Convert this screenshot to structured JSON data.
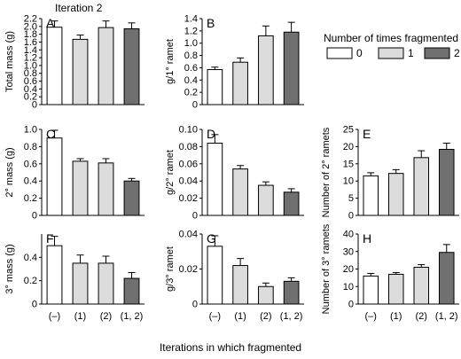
{
  "page": {
    "title": "Iteration 2",
    "shared_xlabel": "Iterations in which fragmented"
  },
  "legend": {
    "title": "Number of times fragmented",
    "items": [
      {
        "label": "0",
        "color": "#ffffff"
      },
      {
        "label": "1",
        "color": "#dcdcdc"
      },
      {
        "label": "2",
        "color": "#707070"
      }
    ]
  },
  "chart_data": [
    {
      "id": "A",
      "type": "bar",
      "ylabel": "Total mass (g)",
      "ylim": [
        0,
        2.2
      ],
      "ticks": [
        0,
        0.2,
        0.4,
        0.6,
        0.8,
        1.0,
        1.2,
        1.4,
        1.6,
        1.8,
        2.0,
        2.2
      ],
      "tick_labels": [
        "0",
        "0.2",
        "0.4",
        "0.6",
        "0.8",
        "1.0",
        "1.2",
        "1.4",
        "1.6",
        "1.8",
        "2.0",
        "2.2"
      ],
      "categories": [
        "(–)",
        "(1)",
        "(2)",
        "(1, 2)"
      ],
      "show_xticklabels": false,
      "values": [
        1.98,
        1.67,
        1.97,
        1.94
      ],
      "errors": [
        0.16,
        0.11,
        0.17,
        0.15
      ],
      "colors": [
        "#ffffff",
        "#dcdcdc",
        "#dcdcdc",
        "#707070"
      ]
    },
    {
      "id": "B",
      "type": "bar",
      "ylabel": "g/1° ramet",
      "ylim": [
        0,
        1.4
      ],
      "ticks": [
        0,
        0.2,
        0.4,
        0.6,
        0.8,
        1.0,
        1.2,
        1.4
      ],
      "tick_labels": [
        "0",
        "0.2",
        "0.4",
        "0.6",
        "0.8",
        "1.0",
        "1.2",
        "1.4"
      ],
      "categories": [
        "(–)",
        "(1)",
        "(2)",
        "(1, 2)"
      ],
      "show_xticklabels": false,
      "values": [
        0.57,
        0.69,
        1.12,
        1.18
      ],
      "errors": [
        0.04,
        0.07,
        0.16,
        0.16
      ],
      "colors": [
        "#ffffff",
        "#dcdcdc",
        "#dcdcdc",
        "#707070"
      ]
    },
    {
      "id": "C",
      "type": "bar",
      "ylabel": "2° mass (g)",
      "ylim": [
        0,
        1.0
      ],
      "ticks": [
        0,
        0.2,
        0.4,
        0.6,
        0.8,
        1.0
      ],
      "tick_labels": [
        "0",
        "0.2",
        "0.4",
        "0.6",
        "0.8",
        "1.0"
      ],
      "categories": [
        "(–)",
        "(1)",
        "(2)",
        "(1, 2)"
      ],
      "show_xticklabels": false,
      "values": [
        0.9,
        0.63,
        0.61,
        0.4
      ],
      "errors": [
        0.09,
        0.03,
        0.05,
        0.03
      ],
      "colors": [
        "#ffffff",
        "#dcdcdc",
        "#dcdcdc",
        "#707070"
      ]
    },
    {
      "id": "D",
      "type": "bar",
      "ylabel": "g/2° ramet",
      "ylim": [
        0,
        0.1
      ],
      "ticks": [
        0,
        0.02,
        0.04,
        0.06,
        0.08,
        0.1
      ],
      "tick_labels": [
        "0",
        "0.02",
        "0.04",
        "0.06",
        "0.08",
        "0.10"
      ],
      "categories": [
        "(–)",
        "(1)",
        "(2)",
        "(1, 2)"
      ],
      "show_xticklabels": false,
      "values": [
        0.084,
        0.054,
        0.035,
        0.027
      ],
      "errors": [
        0.01,
        0.004,
        0.004,
        0.004
      ],
      "colors": [
        "#ffffff",
        "#dcdcdc",
        "#dcdcdc",
        "#707070"
      ]
    },
    {
      "id": "E",
      "type": "bar",
      "ylabel": "Number of 2° ramets",
      "ylim": [
        0,
        25
      ],
      "ticks": [
        0,
        5,
        10,
        15,
        20,
        25
      ],
      "tick_labels": [
        "0",
        "5",
        "10",
        "15",
        "20",
        "25"
      ],
      "categories": [
        "(–)",
        "(1)",
        "(2)",
        "(1, 2)"
      ],
      "show_xticklabels": false,
      "values": [
        11.5,
        12.2,
        16.8,
        19.2
      ],
      "errors": [
        0.9,
        1.1,
        2.0,
        1.8
      ],
      "colors": [
        "#ffffff",
        "#dcdcdc",
        "#dcdcdc",
        "#707070"
      ]
    },
    {
      "id": "F",
      "type": "bar",
      "ylabel": "3° mass (g)",
      "ylim": [
        0,
        0.6
      ],
      "ticks": [
        0,
        0.2,
        0.4
      ],
      "tick_labels": [
        "0",
        "0.2",
        "0.4"
      ],
      "categories": [
        "(–)",
        "(1)",
        "(2)",
        "(1, 2)"
      ],
      "show_xticklabels": true,
      "values": [
        0.5,
        0.35,
        0.35,
        0.22
      ],
      "errors": [
        0.08,
        0.07,
        0.06,
        0.05
      ],
      "colors": [
        "#ffffff",
        "#dcdcdc",
        "#dcdcdc",
        "#707070"
      ]
    },
    {
      "id": "G",
      "type": "bar",
      "ylabel": "g/3° ramet",
      "ylim": [
        0,
        0.04
      ],
      "ticks": [
        0,
        0.02,
        0.04
      ],
      "tick_labels": [
        "0",
        "0.02",
        "0.04"
      ],
      "categories": [
        "(–)",
        "(1)",
        "(2)",
        "(1, 2)"
      ],
      "show_xticklabels": true,
      "values": [
        0.033,
        0.022,
        0.01,
        0.013
      ],
      "errors": [
        0.006,
        0.004,
        0.002,
        0.002
      ],
      "colors": [
        "#ffffff",
        "#dcdcdc",
        "#dcdcdc",
        "#707070"
      ]
    },
    {
      "id": "H",
      "type": "bar",
      "ylabel": "Number of 3° ramets",
      "ylim": [
        0,
        40
      ],
      "ticks": [
        0,
        10,
        20,
        30,
        40
      ],
      "tick_labels": [
        "0",
        "10",
        "20",
        "30",
        "40"
      ],
      "categories": [
        "(–)",
        "(1)",
        "(2)",
        "(1, 2)"
      ],
      "show_xticklabels": true,
      "values": [
        16,
        17,
        21,
        29.5
      ],
      "errors": [
        1.5,
        1.0,
        1.5,
        4.5
      ],
      "colors": [
        "#ffffff",
        "#dcdcdc",
        "#dcdcdc",
        "#707070"
      ]
    }
  ]
}
